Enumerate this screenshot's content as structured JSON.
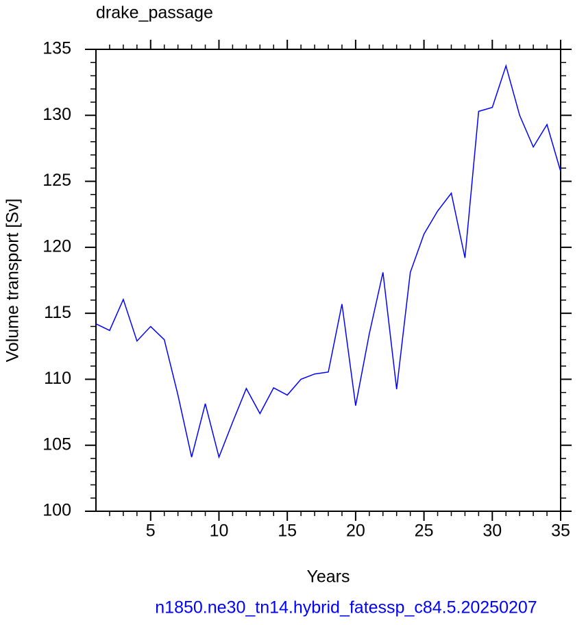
{
  "chart_data": {
    "type": "line",
    "title": "drake_passage",
    "x_label": "Years",
    "y_label": "Volume transport [Sv]",
    "footer": "n1850.ne30_tn14.hybrid_fatessp_c84.5.20250207",
    "x": [
      1,
      2,
      3,
      4,
      5,
      6,
      7,
      8,
      9,
      10,
      11,
      12,
      13,
      14,
      15,
      16,
      17,
      18,
      19,
      20,
      21,
      22,
      23,
      24,
      25,
      26,
      27,
      28,
      29,
      30,
      31,
      32,
      33,
      34,
      35
    ],
    "series": [
      {
        "color": "#0000ff",
        "values": [
          114.2,
          113.7,
          116.05,
          112.9,
          114.0,
          113.0,
          108.8,
          104.1,
          108.15,
          104.1,
          106.75,
          109.3,
          107.4,
          109.35,
          108.8,
          110.0,
          110.4,
          110.55,
          115.7,
          108.0,
          113.45,
          118.1,
          109.25,
          118.1,
          121.0,
          122.75,
          124.1,
          119.2,
          130.3,
          130.6,
          133.75,
          130.0,
          127.6,
          129.3,
          125.75
        ]
      }
    ],
    "xlim": [
      1,
      35
    ],
    "xticks": [
      5,
      10,
      15,
      20,
      25,
      30,
      35
    ],
    "xminorticks": [
      2,
      3,
      4,
      6,
      7,
      8,
      9,
      11,
      12,
      13,
      14,
      16,
      17,
      18,
      19,
      21,
      22,
      23,
      24,
      26,
      27,
      28,
      29,
      31,
      32,
      33,
      34
    ],
    "ylim": [
      100,
      135
    ],
    "yticks": [
      100,
      105,
      110,
      115,
      120,
      125,
      130,
      135
    ],
    "yminorticks": [
      101,
      102,
      103,
      104,
      106,
      107,
      108,
      109,
      111,
      112,
      113,
      114,
      116,
      117,
      118,
      119,
      121,
      122,
      123,
      124,
      126,
      127,
      128,
      129,
      131,
      132,
      133,
      134
    ],
    "footer_color": "#0000ff"
  }
}
